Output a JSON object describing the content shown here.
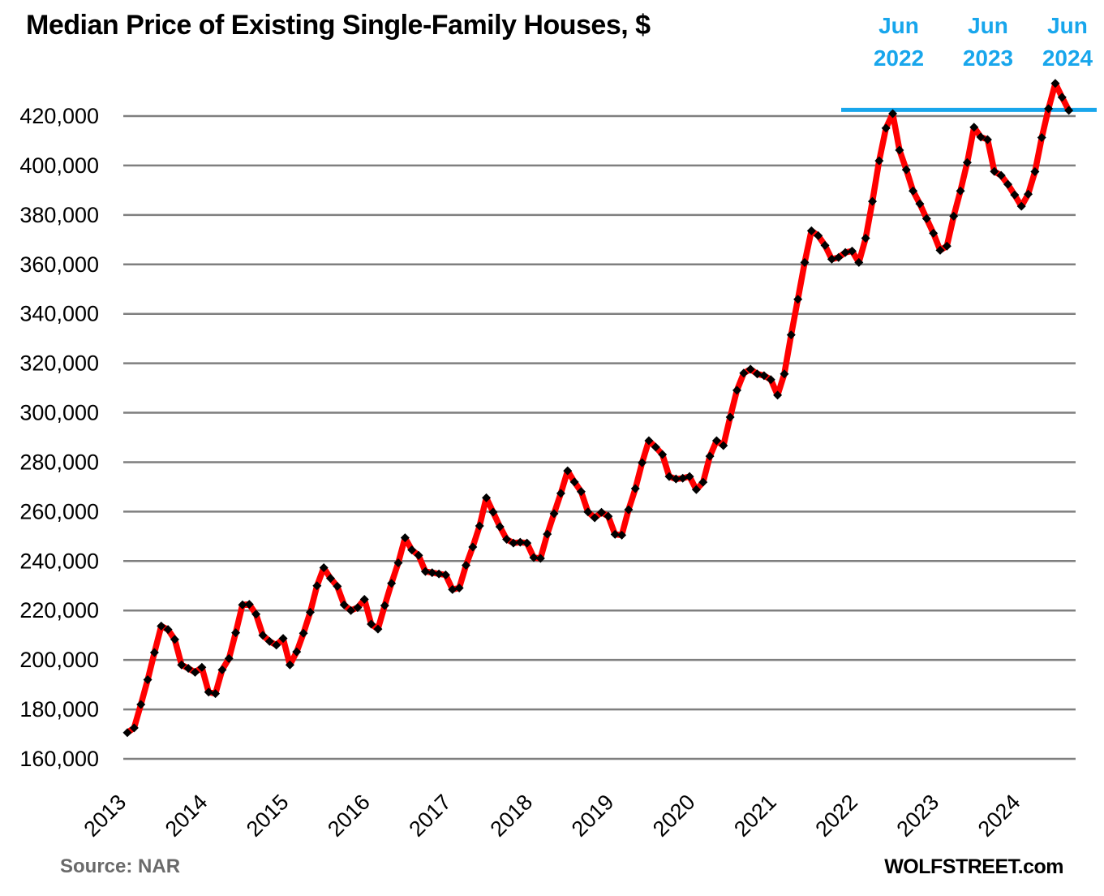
{
  "page": {
    "title": "Median Price of Existing Single-Family Houses, $",
    "source_label": "Source: NAR",
    "branding": "WOLFSTREET.com"
  },
  "colors": {
    "line": "#ff0000",
    "marker": "#000000",
    "grid": "#7f7f7f",
    "accent_blue": "#18a6ec",
    "axis_text": "#000000",
    "source_text": "#6a6a6a"
  },
  "chart_data": {
    "type": "line",
    "title": "Median Price of Existing Single-Family Houses, $",
    "xlabel": "",
    "ylabel": "",
    "unit": "$",
    "grid": "horizontal",
    "legend_position": "none",
    "ylim": [
      160000,
      435000
    ],
    "y_ticks": [
      160000,
      180000,
      200000,
      220000,
      240000,
      260000,
      280000,
      300000,
      320000,
      340000,
      360000,
      380000,
      400000,
      420000
    ],
    "x_tick_labels": [
      "2013",
      "2014",
      "2015",
      "2016",
      "2017",
      "2018",
      "2019",
      "2020",
      "2021",
      "2022",
      "2023",
      "2024"
    ],
    "start": {
      "year": 2013,
      "month": 1
    },
    "end": {
      "year": 2024,
      "month": 8
    },
    "reference_line": {
      "value": 422500,
      "color": "#18a6ec"
    },
    "annotations": [
      {
        "month": "Jun",
        "year": "2022"
      },
      {
        "month": "Jun",
        "year": "2023"
      },
      {
        "month": "Jun",
        "year": "2024"
      }
    ],
    "series": [
      {
        "name": "median_price_existing_single_family_houses",
        "color": "#ff0000",
        "marker": "diamond",
        "values": [
          170600,
          172500,
          182000,
          192000,
          203000,
          213700,
          212300,
          208300,
          198000,
          196600,
          195000,
          197000,
          187000,
          186400,
          196000,
          200600,
          211000,
          222300,
          222500,
          218500,
          210000,
          207500,
          206000,
          208700,
          198000,
          203300,
          210800,
          219300,
          230000,
          237300,
          233000,
          229800,
          222300,
          220000,
          221200,
          224500,
          214500,
          212500,
          222000,
          231000,
          239300,
          249400,
          244500,
          242300,
          235800,
          235300,
          234800,
          234400,
          228500,
          229100,
          238300,
          245700,
          254200,
          265600,
          259800,
          253900,
          248800,
          247300,
          247600,
          247300,
          241400,
          241100,
          250900,
          259200,
          267400,
          276500,
          272000,
          268100,
          259900,
          257500,
          259700,
          258100,
          250800,
          250500,
          260800,
          269300,
          279800,
          288700,
          286100,
          283100,
          274200,
          273200,
          273500,
          274200,
          268900,
          271900,
          282400,
          288700,
          286700,
          298200,
          309100,
          316000,
          317600,
          315700,
          315000,
          313400,
          307100,
          315700,
          331500,
          345900,
          360800,
          373600,
          371600,
          367700,
          362100,
          362800,
          364800,
          365400,
          360800,
          370600,
          385500,
          401900,
          415100,
          421000,
          406200,
          398300,
          389700,
          384500,
          378500,
          372600,
          365700,
          367400,
          379500,
          389700,
          401200,
          415500,
          411500,
          410500,
          397600,
          396000,
          392400,
          388100,
          383500,
          388400,
          397500,
          411300,
          423000,
          433200,
          427600,
          422300
        ]
      }
    ]
  }
}
